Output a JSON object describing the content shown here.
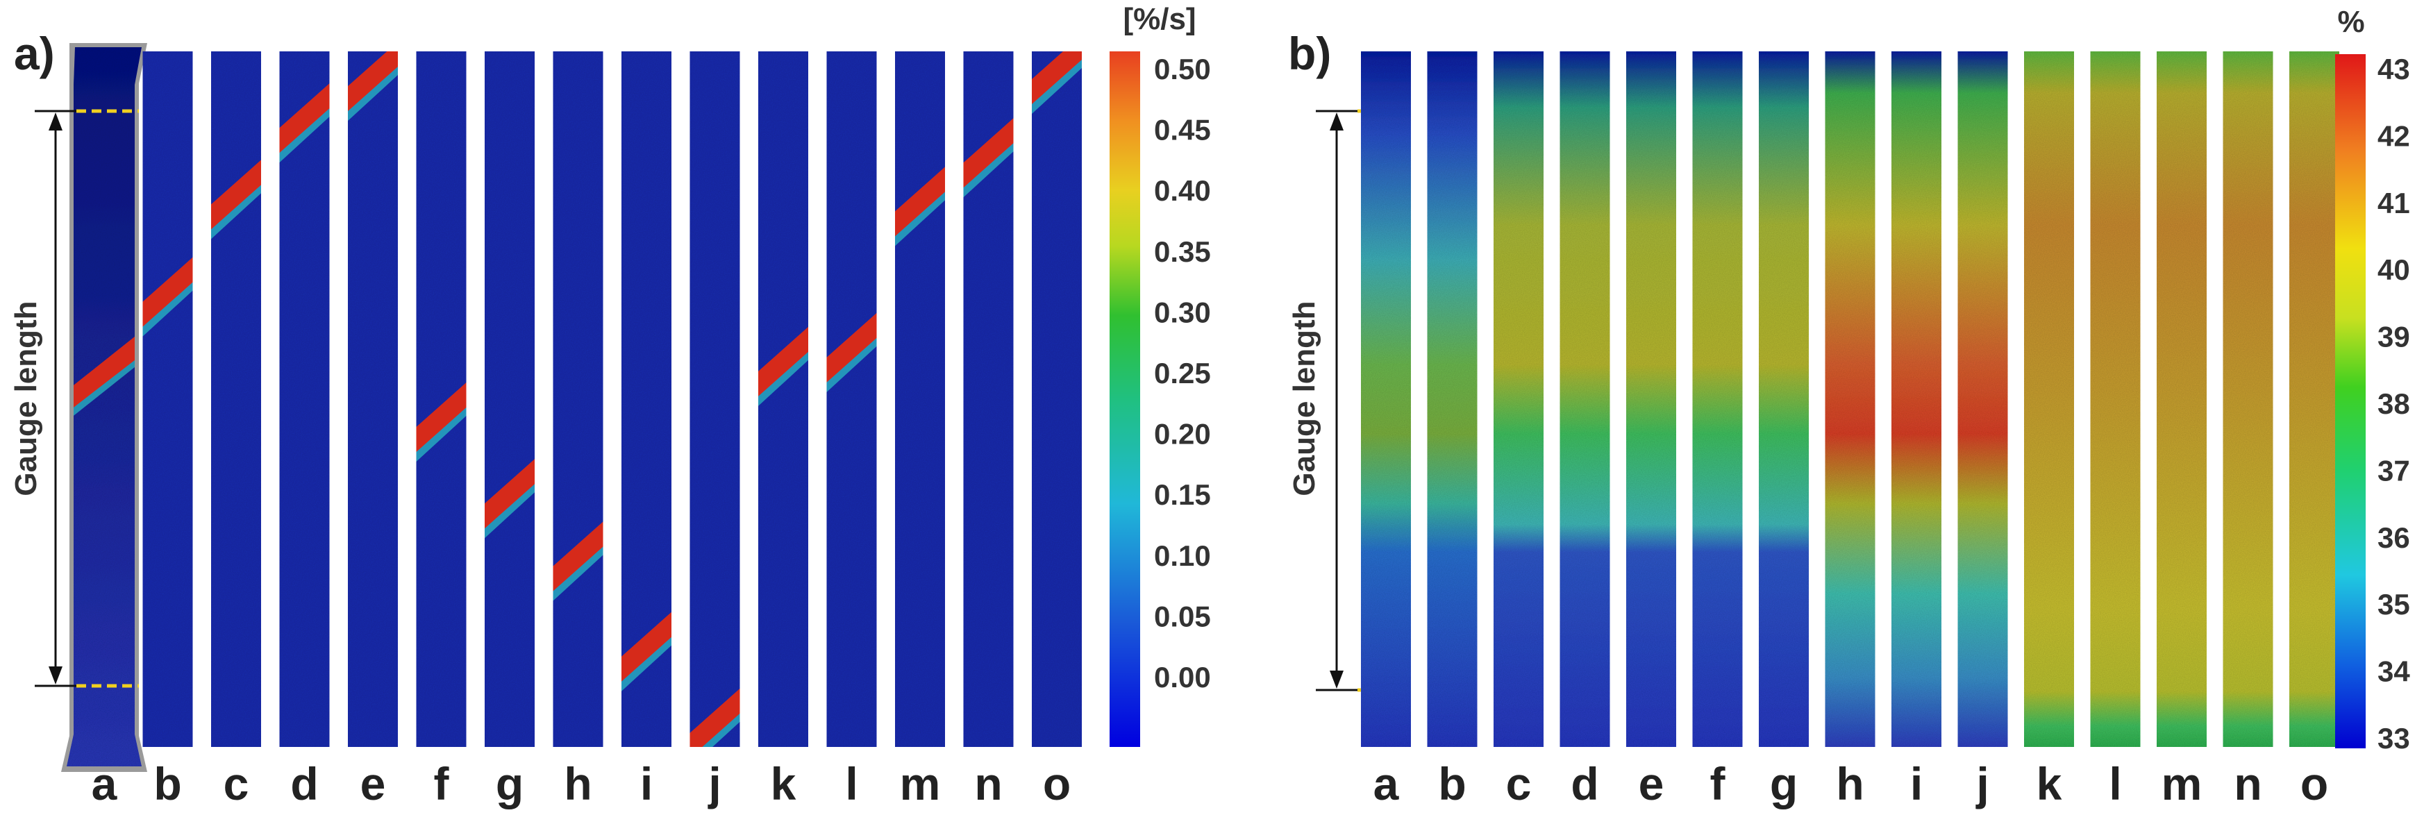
{
  "panels": [
    {
      "id": "a",
      "panel_label": "a)",
      "colorbar_unit": "[%/s]",
      "colorbar_ticks": [
        "0.50",
        "0.45",
        "0.40",
        "0.35",
        "0.30",
        "0.25",
        "0.20",
        "0.15",
        "0.10",
        "0.05",
        "0.00"
      ],
      "colorbar_min": 0.0,
      "colorbar_max": 0.5,
      "gauge_label": "Gauge length",
      "strip_labels": [
        "a",
        "b",
        "c",
        "d",
        "e",
        "f",
        "g",
        "h",
        "i",
        "j",
        "k",
        "l",
        "m",
        "n",
        "o"
      ],
      "band_positions": [
        0.45,
        0.34,
        0.2,
        0.09,
        0.03,
        0.52,
        0.63,
        0.72,
        0.85,
        0.96,
        0.44,
        0.42,
        0.21,
        0.14,
        0.02
      ],
      "colors": {
        "background": "#1a2fb0",
        "band": "#d62a1a",
        "halo": "#2bc4c4"
      }
    },
    {
      "id": "b",
      "panel_label": "b)",
      "colorbar_unit": "%",
      "colorbar_ticks": [
        "43",
        "42",
        "41",
        "40",
        "39",
        "38",
        "37",
        "36",
        "35",
        "34",
        "33"
      ],
      "colorbar_min": 33,
      "colorbar_max": 43,
      "gauge_label": "Gauge length",
      "strip_labels": [
        "a",
        "b",
        "c",
        "d",
        "e",
        "f",
        "g",
        "h",
        "i",
        "j",
        "k",
        "l",
        "m",
        "n",
        "o"
      ],
      "colors": {
        "low": "#2a3cc0",
        "mid": "#b8b830",
        "high": "#e03020"
      }
    }
  ]
}
